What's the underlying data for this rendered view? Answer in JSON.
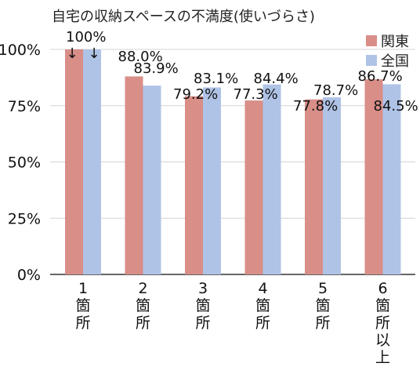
{
  "chart_data": {
    "type": "bar",
    "title": "自宅の収納スペースの不満度(使いづらさ)",
    "categories": [
      [
        "1",
        "箇",
        "所"
      ],
      [
        "2",
        "箇",
        "所"
      ],
      [
        "3",
        "箇",
        "所"
      ],
      [
        "4",
        "箇",
        "所"
      ],
      [
        "5",
        "箇",
        "所"
      ],
      [
        "6",
        "箇",
        "所",
        "以",
        "上"
      ]
    ],
    "series": [
      {
        "name": "関東",
        "color": "#D98E88",
        "values": [
          100,
          88.0,
          79.2,
          77.3,
          77.8,
          86.7
        ],
        "labels": [
          "100%",
          "88.0%",
          "79.2%",
          "77.3%",
          "77.8%",
          "86.7%"
        ]
      },
      {
        "name": "全国",
        "color": "#AFC3E6",
        "values": [
          100,
          83.9,
          83.1,
          84.4,
          78.7,
          84.5
        ],
        "labels": [
          "",
          "83.9%",
          "83.1%",
          "84.4%",
          "78.7%",
          "84.5%"
        ]
      }
    ],
    "yticks": [
      "0%",
      "25%",
      "50%",
      "75%",
      "100%"
    ],
    "ylim": [
      0,
      100
    ],
    "grid": true,
    "legend": "top-right",
    "annotation": {
      "arrow": "↓"
    }
  }
}
